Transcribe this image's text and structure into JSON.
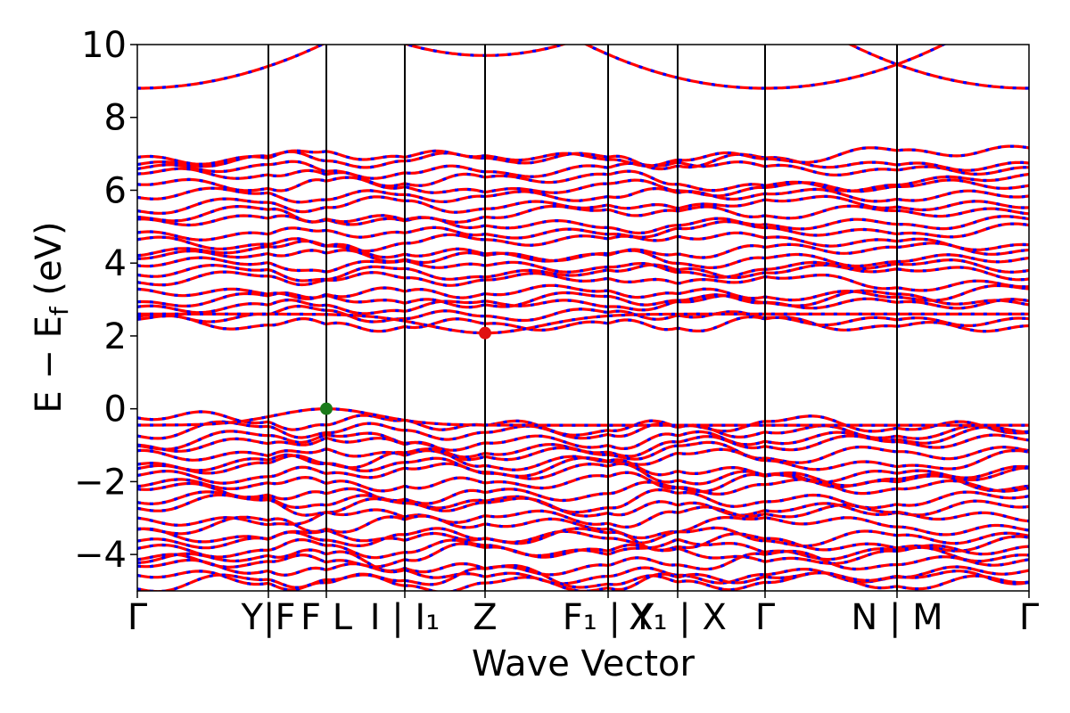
{
  "chart_data": {
    "type": "line",
    "title": "",
    "xlabel": "Wave Vector",
    "ylabel": "E − E_f (eV)",
    "ylabel_parts": {
      "main": "E − E",
      "sub": "f",
      "unit": " (eV)"
    },
    "ylim": [
      -5,
      10
    ],
    "yticks": [
      -4,
      -2,
      0,
      2,
      4,
      6,
      8,
      10
    ],
    "ytick_labels": [
      "−4",
      "−2",
      "0",
      "2",
      "4",
      "6",
      "8",
      "10"
    ],
    "grid": false,
    "legend": "none",
    "kpath_ticks": [
      {
        "x": 0.0,
        "label": "Γ"
      },
      {
        "x": 0.147,
        "label": "Y|F"
      },
      {
        "x": 0.212,
        "label": "F L"
      },
      {
        "x": 0.3,
        "label": "I | I₁"
      },
      {
        "x": 0.39,
        "label": "Z"
      },
      {
        "x": 0.528,
        "label": "F₁ | Y"
      },
      {
        "x": 0.606,
        "label": "X₁ | X"
      },
      {
        "x": 0.704,
        "label": "Γ"
      },
      {
        "x": 0.852,
        "label": "N | M"
      },
      {
        "x": 1.0,
        "label": "Γ"
      }
    ],
    "band_gap_markers": [
      {
        "name": "VBM",
        "x": 0.212,
        "y": 0.0,
        "color": "#1a7a1a"
      },
      {
        "name": "CBM",
        "x": 0.39,
        "y": 2.08,
        "color": "#e01010"
      }
    ],
    "series_colors": {
      "spin_up": "#ff0000",
      "spin_down": "#0000ff"
    },
    "conduction_band_anchors": [
      2.3,
      2.6,
      2.8,
      3.0,
      3.2,
      3.5,
      3.7,
      3.9,
      4.1,
      4.3,
      4.6,
      4.9,
      5.1,
      5.3,
      5.6,
      5.8,
      6.1,
      6.3,
      6.6,
      6.8,
      7.0
    ],
    "valence_band_anchors": [
      -0.4,
      -0.6,
      -0.8,
      -1.0,
      -1.2,
      -1.4,
      -1.6,
      -1.8,
      -2.0,
      -2.3,
      -2.5,
      -2.7,
      -3.0,
      -3.2,
      -3.4,
      -3.6,
      -3.8,
      -4.0,
      -4.2,
      -4.4,
      -4.6,
      -4.8
    ],
    "high_band_anchors": [
      8.8,
      9.7
    ]
  }
}
